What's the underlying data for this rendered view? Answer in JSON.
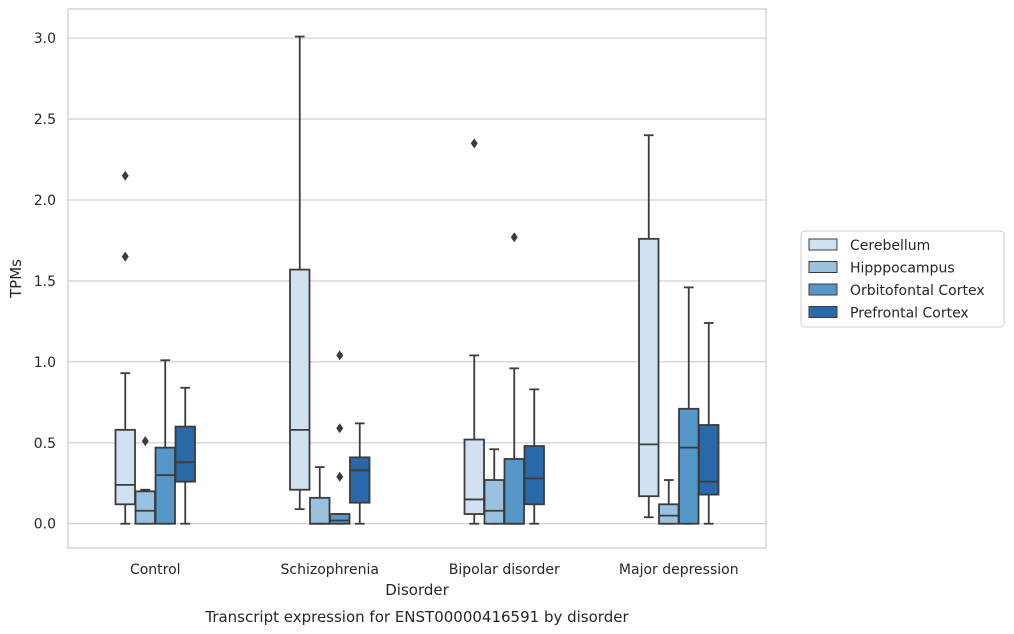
{
  "caption": "Transcript expression for ENST00000416591 by disorder",
  "chart_data": {
    "type": "box",
    "xlabel": "Disorder",
    "ylabel": "TPMs",
    "ylim": [
      -0.15,
      3.18
    ],
    "yticks": [
      0.0,
      0.5,
      1.0,
      1.5,
      2.0,
      2.5,
      3.0
    ],
    "ytick_labels": [
      "0.0",
      "0.5",
      "1.0",
      "1.5",
      "2.0",
      "2.5",
      "3.0"
    ],
    "grid": "horizontal",
    "legend_position": "right",
    "categories": [
      "Control",
      "Schizophrenia",
      "Bipolar disorder",
      "Major depression"
    ],
    "series": [
      {
        "name": "Cerebellum",
        "color": "#d0e1f2",
        "boxes": [
          {
            "whislo": 0.0,
            "q1": 0.12,
            "med": 0.24,
            "q3": 0.58,
            "whishi": 0.93,
            "fliers": [
              1.65,
              2.15
            ]
          },
          {
            "whislo": 0.09,
            "q1": 0.21,
            "med": 0.58,
            "q3": 1.57,
            "whishi": 3.01,
            "fliers": []
          },
          {
            "whislo": 0.0,
            "q1": 0.06,
            "med": 0.15,
            "q3": 0.52,
            "whishi": 1.04,
            "fliers": [
              2.35
            ]
          },
          {
            "whislo": 0.04,
            "q1": 0.17,
            "med": 0.49,
            "q3": 1.76,
            "whishi": 2.4,
            "fliers": []
          }
        ]
      },
      {
        "name": "Hipppocampus",
        "color": "#9ac1dd",
        "boxes": [
          {
            "whislo": 0.0,
            "q1": 0.0,
            "med": 0.08,
            "q3": 0.2,
            "whishi": 0.21,
            "fliers": [
              0.51
            ]
          },
          {
            "whislo": 0.0,
            "q1": 0.0,
            "med": 0.0,
            "q3": 0.16,
            "whishi": 0.35,
            "fliers": []
          },
          {
            "whislo": 0.0,
            "q1": 0.0,
            "med": 0.08,
            "q3": 0.27,
            "whishi": 0.46,
            "fliers": []
          },
          {
            "whislo": 0.0,
            "q1": 0.0,
            "med": 0.05,
            "q3": 0.12,
            "whishi": 0.27,
            "fliers": []
          }
        ]
      },
      {
        "name": "Orbitofontal Cortex",
        "color": "#5597c7",
        "boxes": [
          {
            "whislo": 0.0,
            "q1": 0.0,
            "med": 0.3,
            "q3": 0.47,
            "whishi": 1.01,
            "fliers": []
          },
          {
            "whislo": 0.0,
            "q1": 0.0,
            "med": 0.02,
            "q3": 0.06,
            "whishi": 0.06,
            "fliers": [
              0.29,
              0.59,
              1.04
            ]
          },
          {
            "whislo": 0.0,
            "q1": 0.0,
            "med": 0.0,
            "q3": 0.4,
            "whishi": 0.96,
            "fliers": [
              1.77
            ]
          },
          {
            "whislo": 0.0,
            "q1": 0.0,
            "med": 0.47,
            "q3": 0.71,
            "whishi": 1.46,
            "fliers": []
          }
        ]
      },
      {
        "name": "Prefrontal Cortex",
        "color": "#2a69a7",
        "boxes": [
          {
            "whislo": 0.0,
            "q1": 0.26,
            "med": 0.38,
            "q3": 0.6,
            "whishi": 0.84,
            "fliers": []
          },
          {
            "whislo": 0.0,
            "q1": 0.13,
            "med": 0.33,
            "q3": 0.41,
            "whishi": 0.62,
            "fliers": []
          },
          {
            "whislo": 0.0,
            "q1": 0.12,
            "med": 0.28,
            "q3": 0.48,
            "whishi": 0.83,
            "fliers": []
          },
          {
            "whislo": 0.0,
            "q1": 0.18,
            "med": 0.26,
            "q3": 0.61,
            "whishi": 1.24,
            "fliers": []
          }
        ]
      }
    ]
  }
}
